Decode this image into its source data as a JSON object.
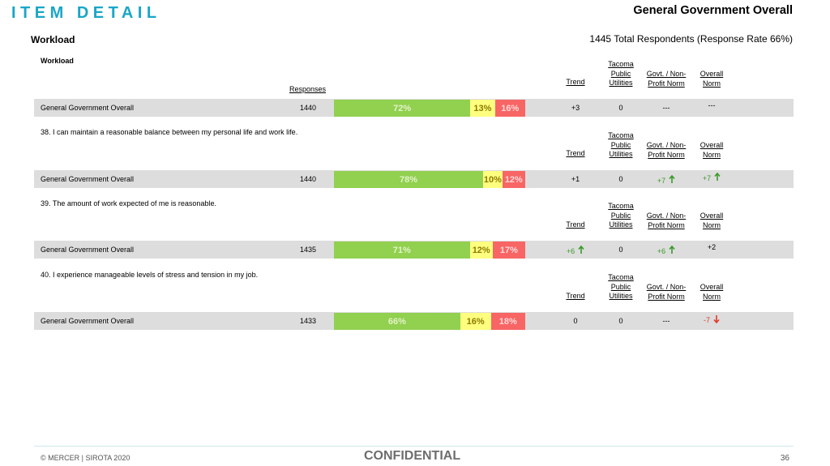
{
  "header": {
    "page_heading": "ITEM DETAIL",
    "top_title": "General Government Overall",
    "section_title": "Workload",
    "respondents": "1445 Total Respondents (Response Rate  66%)"
  },
  "columns": {
    "responses": "Responses",
    "trend": "Trend",
    "tacoma": [
      "Tacoma",
      "Public",
      "Utilities"
    ],
    "govt": [
      "Govt. / Non-",
      "Profit Norm"
    ],
    "overall": [
      "Overall",
      "Norm"
    ]
  },
  "blocks": [
    {
      "title": "Workload",
      "row": {
        "label": "General Government Overall",
        "responses": "1440",
        "favorable": 72,
        "neutral": 13,
        "unfavorable": 16,
        "favorable_label": "72%",
        "neutral_label": "13%",
        "unfavorable_label": "16%",
        "trend": "+3",
        "trend_dir": "",
        "tacoma": "0",
        "govt": "---",
        "govt_dir": "",
        "overall": "---",
        "overall_dir": ""
      }
    },
    {
      "title": "38. I can maintain a reasonable balance between my personal life and work life.",
      "row": {
        "label": "General Government Overall",
        "responses": "1440",
        "favorable": 78,
        "neutral": 10,
        "unfavorable": 12,
        "favorable_label": "78%",
        "neutral_label": "10%",
        "unfavorable_label": "12%",
        "trend": "+1",
        "trend_dir": "",
        "tacoma": "0",
        "govt": "+7",
        "govt_dir": "up",
        "overall": "+7",
        "overall_dir": "up"
      }
    },
    {
      "title": "39. The amount of work expected of me is reasonable.",
      "row": {
        "label": "General Government Overall",
        "responses": "1435",
        "favorable": 71,
        "neutral": 12,
        "unfavorable": 17,
        "favorable_label": "71%",
        "neutral_label": "12%",
        "unfavorable_label": "17%",
        "trend": "+6",
        "trend_dir": "up",
        "tacoma": "0",
        "govt": "+6",
        "govt_dir": "up",
        "overall": "+2",
        "overall_dir": ""
      }
    },
    {
      "title": "40. I experience manageable levels of stress and tension in my job.",
      "row": {
        "label": "General Government Overall",
        "responses": "1433",
        "favorable": 66,
        "neutral": 16,
        "unfavorable": 18,
        "favorable_label": "66%",
        "neutral_label": "16%",
        "unfavorable_label": "18%",
        "trend": "0",
        "trend_dir": "",
        "tacoma": "0",
        "govt": "---",
        "govt_dir": "",
        "overall": "-7",
        "overall_dir": "down"
      }
    }
  ],
  "colors": {
    "heading": "#1aa6c8",
    "favorable": "#92d050",
    "neutral": "#ffff7f",
    "unfavorable": "#f86565",
    "up_arrow": "#3a9a2a",
    "down_arrow": "#e03a2a",
    "row_bg": "#dddddd"
  },
  "footer": {
    "copyright": "© MERCER | SIROTA 2020",
    "confidential": "CONFIDENTIAL",
    "page_number": "36"
  }
}
